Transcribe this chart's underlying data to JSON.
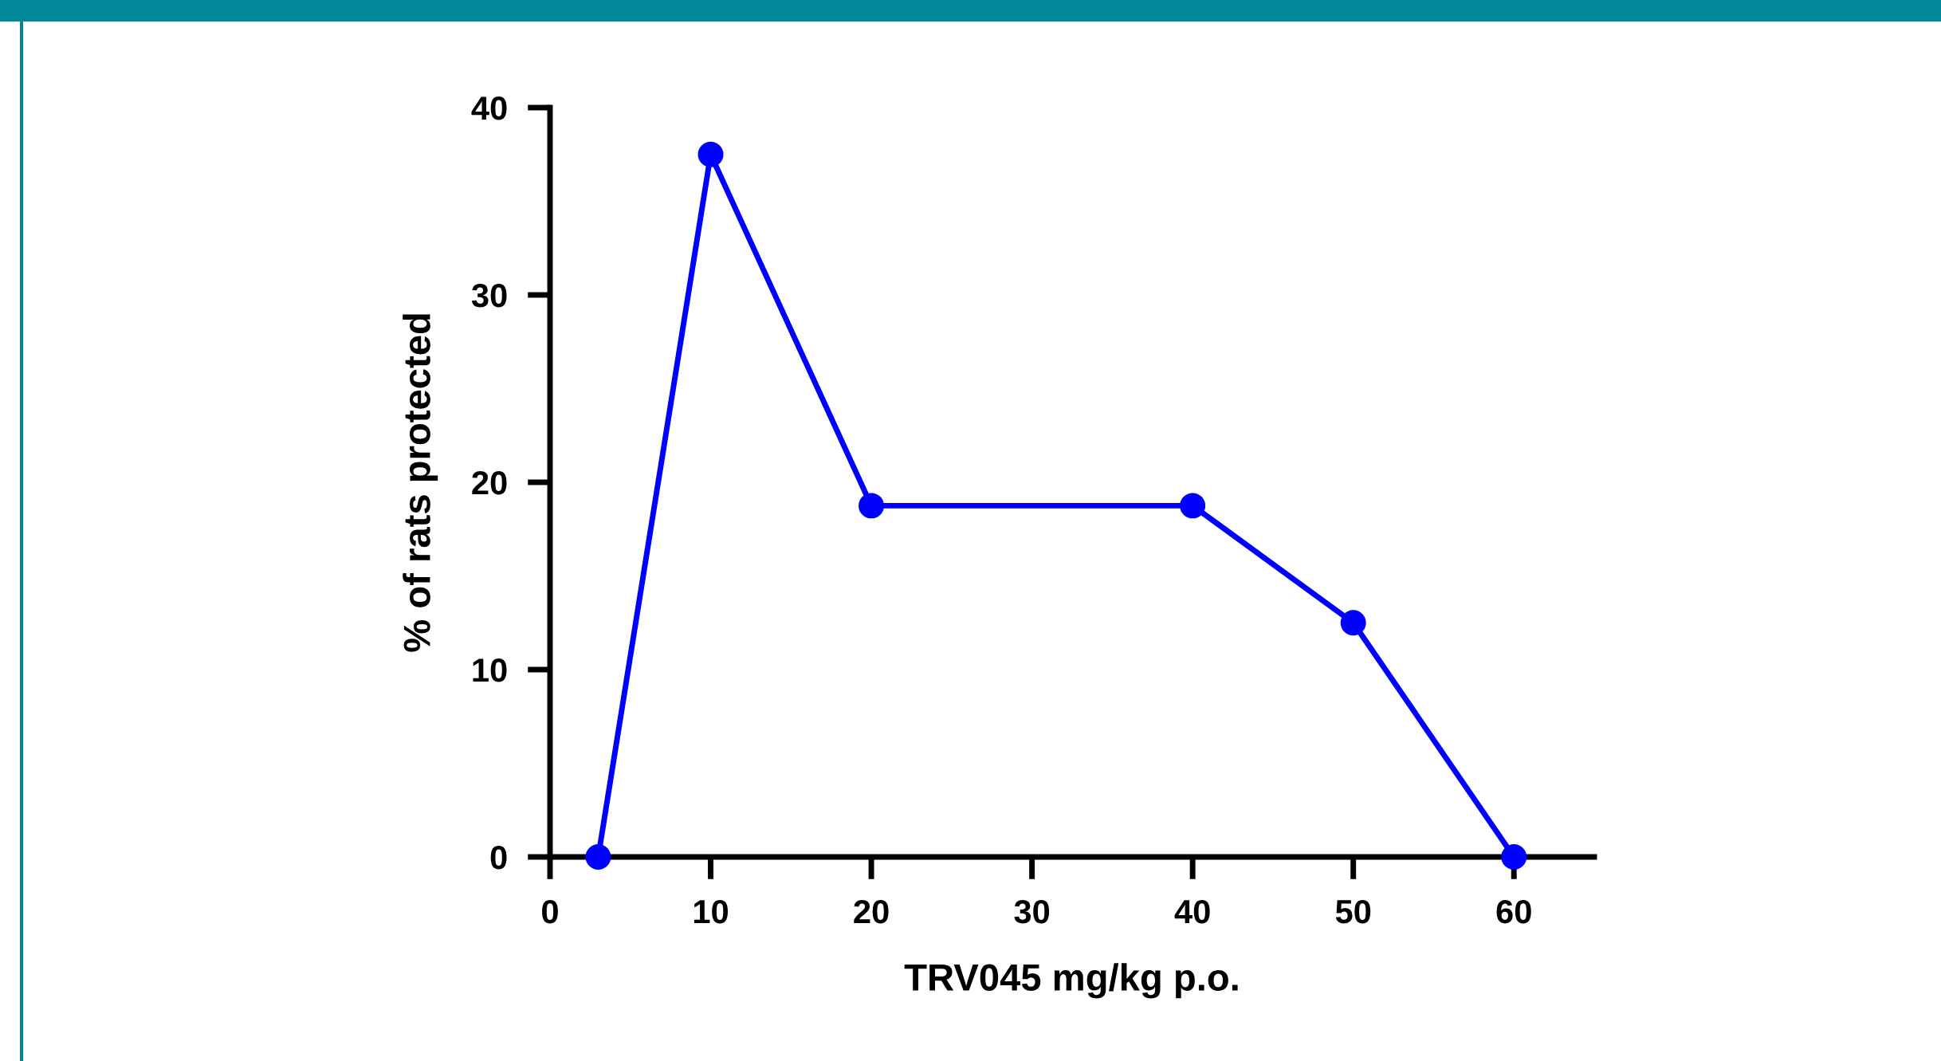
{
  "chart_data": {
    "type": "line",
    "xlabel": "TRV045 mg/kg p.o.",
    "ylabel": "% of rats protected",
    "x": [
      3,
      10,
      20,
      40,
      50,
      60
    ],
    "series": [
      {
        "color": "#0000ff",
        "values": [
          0,
          37.5,
          18.75,
          18.75,
          12.5,
          0
        ]
      }
    ],
    "xlim": [
      0,
      65
    ],
    "xticks": [
      0,
      10,
      20,
      30,
      40,
      50,
      60
    ],
    "ylim": [
      0,
      40
    ],
    "yticks": [
      0,
      10,
      20,
      30,
      40
    ],
    "marker": "circle",
    "line_style": "solid",
    "grid": false,
    "legend": false
  }
}
